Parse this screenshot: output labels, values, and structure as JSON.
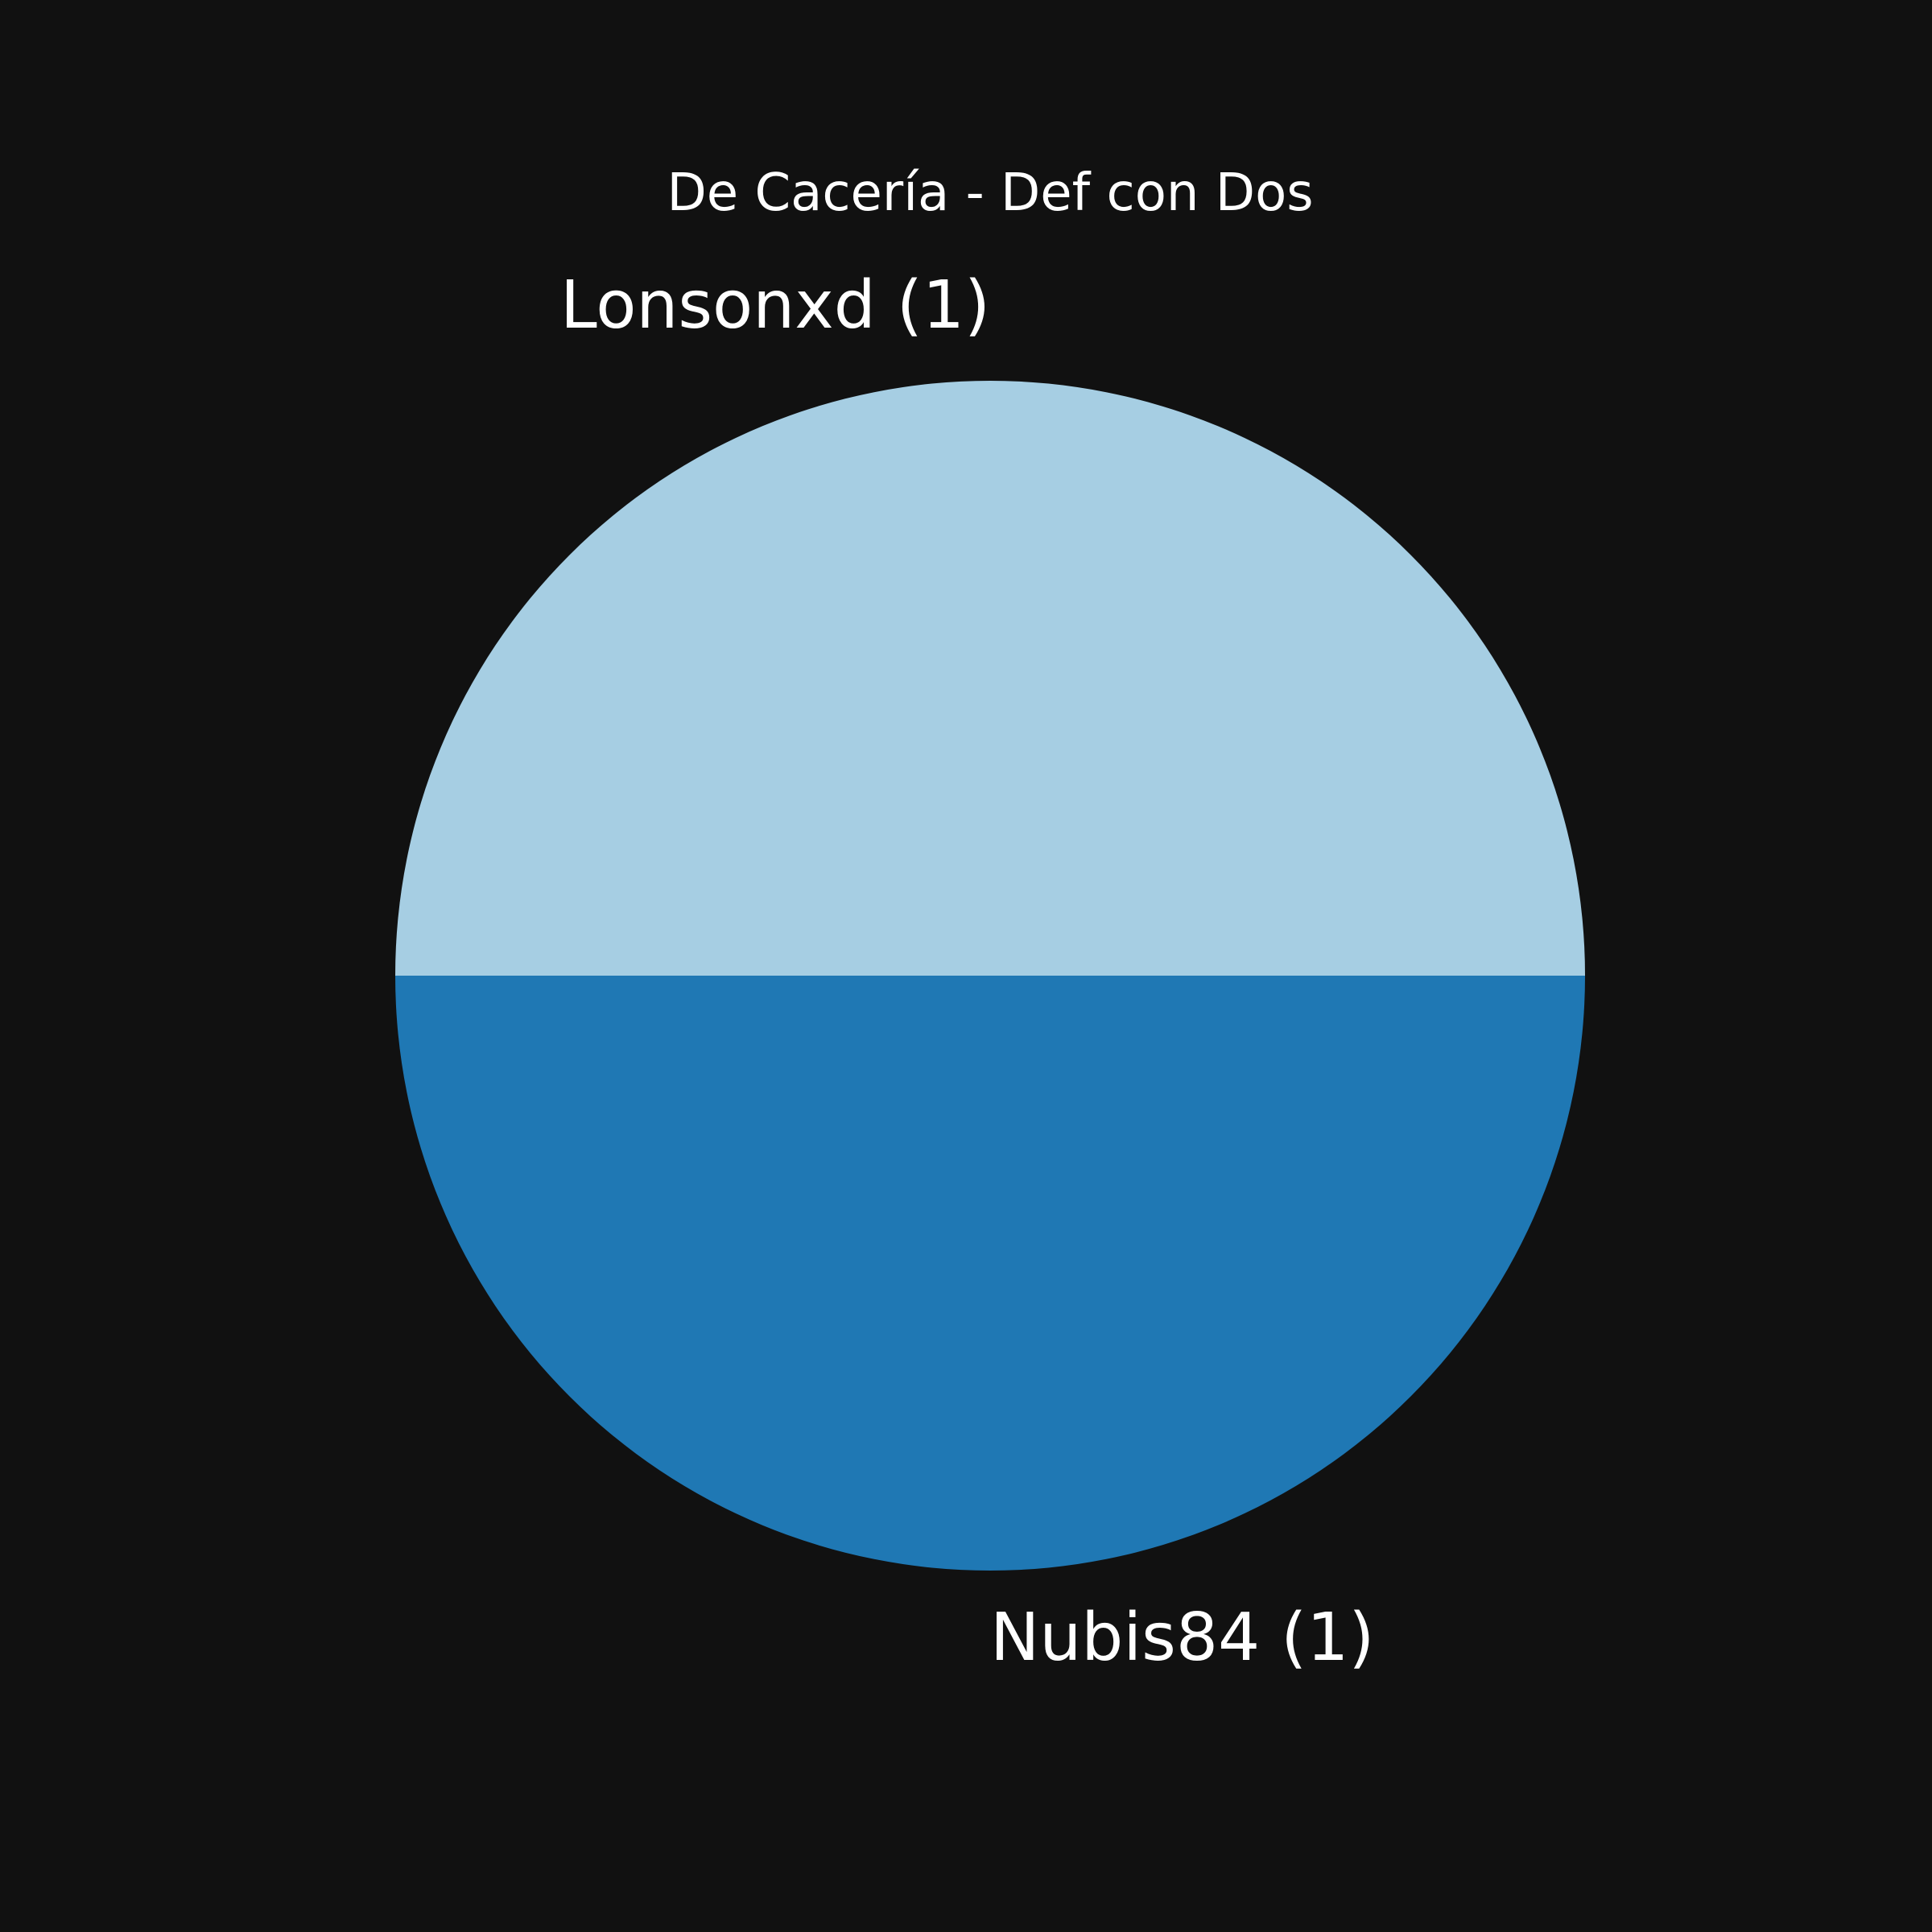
{
  "chart_data": {
    "type": "pie",
    "title": "De Cacería - Def con Dos",
    "slices": [
      {
        "label": "Lonsonxd (1)",
        "value": 1,
        "color": "#a6cee3"
      },
      {
        "label": "Nubis84 (1)",
        "value": 1,
        "color": "#1f78b4"
      }
    ],
    "background": "#111111",
    "text_color": "#ffffff"
  }
}
